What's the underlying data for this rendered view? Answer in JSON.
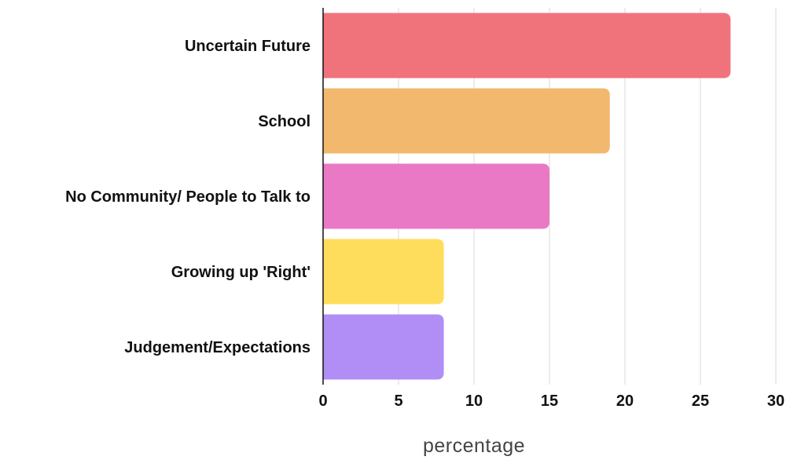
{
  "chart_data": {
    "type": "bar",
    "orientation": "horizontal",
    "categories": [
      "Uncertain Future",
      "School",
      "No Community/ People to Talk to",
      "Growing up 'Right'",
      "Judgement/Expectations"
    ],
    "values": [
      27,
      19,
      15,
      8,
      8
    ],
    "colors": [
      "#f0737c",
      "#f2b96e",
      "#ea79c5",
      "#ffdd5c",
      "#b08ef5"
    ],
    "title": "",
    "xlabel": "percentage",
    "ylabel": "",
    "xlim": [
      0,
      30
    ],
    "xticks": [
      "0",
      "5",
      "10",
      "15",
      "20",
      "25",
      "30"
    ],
    "grid": "vertical",
    "gridColor": "#d9d9d9",
    "axisColor": "#111111"
  }
}
